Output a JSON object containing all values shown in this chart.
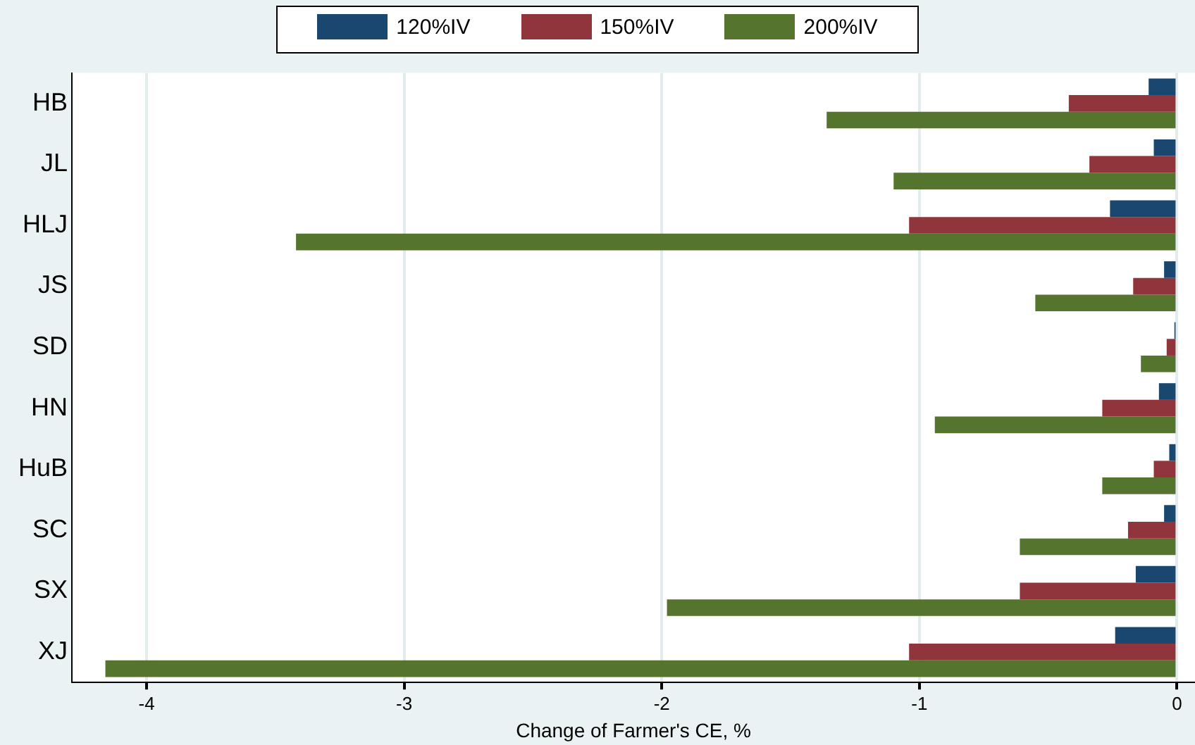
{
  "chart_data": {
    "type": "bar",
    "orientation": "horizontal",
    "xlabel": "Change of Farmer's CE, %",
    "categories": [
      "HB",
      "JL",
      "HLJ",
      "JS",
      "SD",
      "HN",
      "HuB",
      "SC",
      "SX",
      "XJ"
    ],
    "series": [
      {
        "name": "120%IV",
        "color": "#1a476f",
        "values": [
          -0.11,
          -0.09,
          -0.26,
          -0.05,
          -0.01,
          -0.07,
          -0.03,
          -0.05,
          -0.16,
          -0.24
        ]
      },
      {
        "name": "150%IV",
        "color": "#90353b",
        "values": [
          -0.42,
          -0.34,
          -1.04,
          -0.17,
          -0.04,
          -0.29,
          -0.09,
          -0.19,
          -0.61,
          -1.04
        ]
      },
      {
        "name": "200%IV",
        "color": "#55752f",
        "values": [
          -1.36,
          -1.1,
          -3.42,
          -0.55,
          -0.14,
          -0.94,
          -0.29,
          -0.61,
          -1.98,
          -4.16
        ]
      }
    ],
    "xlim": [
      -4.29,
      0.07
    ],
    "xticks": [
      -4,
      -3,
      -2,
      -1,
      0
    ],
    "grid": "x",
    "legend": "top"
  }
}
